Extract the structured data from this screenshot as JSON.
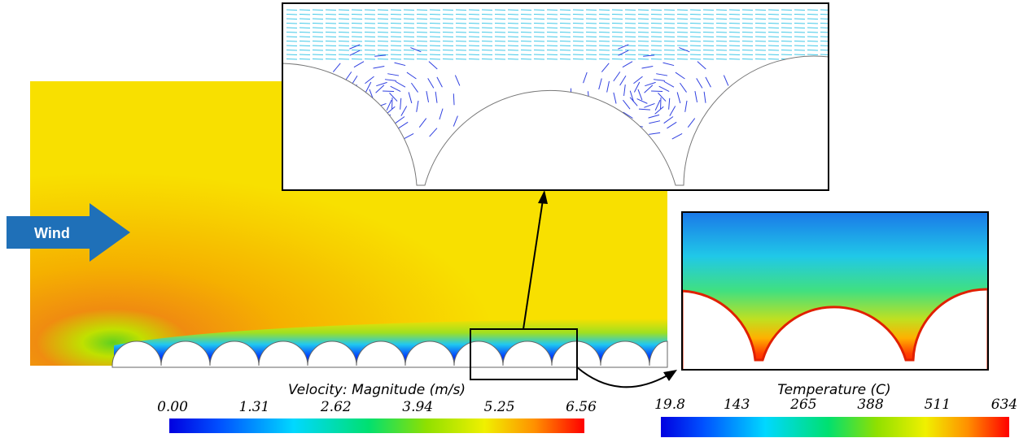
{
  "wind_label": "Wind",
  "velocity_legend": {
    "title": "Velocity: Magnitude (m/s)",
    "ticks": [
      "0.00",
      "1.31",
      "2.62",
      "3.94",
      "5.25",
      "6.56"
    ]
  },
  "temperature_legend": {
    "title": "Temperature (C)",
    "ticks": [
      "19.8",
      "143",
      "265",
      "388",
      "511",
      "634"
    ]
  }
}
